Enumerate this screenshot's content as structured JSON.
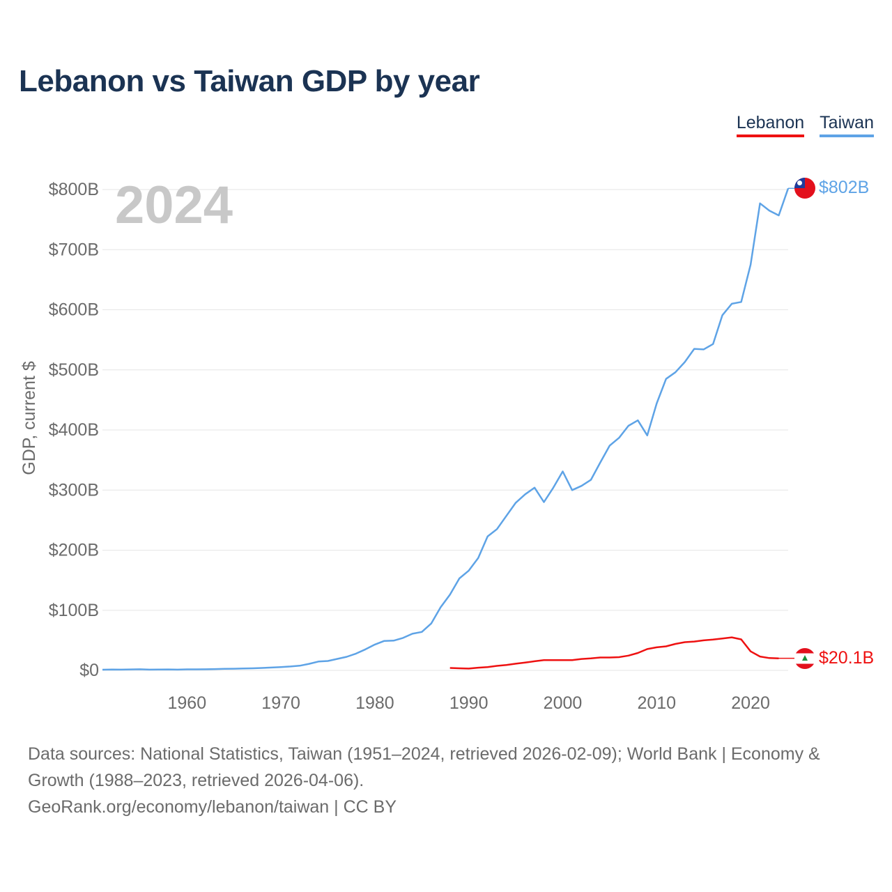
{
  "chart_data": {
    "type": "line",
    "title": "Lebanon vs Taiwan GDP by year",
    "year_label": "2024",
    "ylabel": "GDP, current $",
    "xlim": [
      1951,
      2024
    ],
    "ylim": [
      0,
      800
    ],
    "y_ticks": [
      0,
      100,
      200,
      300,
      400,
      500,
      600,
      700,
      800
    ],
    "y_tick_labels": [
      "$0",
      "$100B",
      "$200B",
      "$300B",
      "$400B",
      "$500B",
      "$600B",
      "$700B",
      "$800B"
    ],
    "x_ticks": [
      1960,
      1970,
      1980,
      1990,
      2000,
      2010,
      2020
    ],
    "x_tick_labels": [
      "1960",
      "1970",
      "1980",
      "1990",
      "2000",
      "2010",
      "2020"
    ],
    "legend": [
      "Lebanon",
      "Taiwan"
    ],
    "series": [
      {
        "name": "Taiwan",
        "color": "#5ea3e6",
        "end_label": "$802B",
        "x": [
          1951,
          1952,
          1953,
          1954,
          1955,
          1956,
          1957,
          1958,
          1959,
          1960,
          1961,
          1962,
          1963,
          1964,
          1965,
          1966,
          1967,
          1968,
          1969,
          1970,
          1971,
          1972,
          1973,
          1974,
          1975,
          1976,
          1977,
          1978,
          1979,
          1980,
          1981,
          1982,
          1983,
          1984,
          1985,
          1986,
          1987,
          1988,
          1989,
          1990,
          1991,
          1992,
          1993,
          1994,
          1995,
          1996,
          1997,
          1998,
          1999,
          2000,
          2001,
          2002,
          2003,
          2004,
          2005,
          2006,
          2007,
          2008,
          2009,
          2010,
          2011,
          2012,
          2013,
          2014,
          2015,
          2016,
          2017,
          2018,
          2019,
          2020,
          2021,
          2022,
          2023,
          2024
        ],
        "y": [
          1.2,
          1.4,
          1.3,
          1.6,
          1.8,
          1.3,
          1.5,
          1.6,
          1.3,
          1.7,
          1.7,
          1.9,
          2.2,
          2.6,
          2.8,
          3.1,
          3.5,
          4.1,
          4.8,
          5.6,
          6.5,
          7.8,
          10.9,
          14.7,
          15.7,
          19.1,
          22.6,
          28.0,
          35.0,
          43.0,
          49.0,
          49.5,
          54.0,
          61.0,
          64.0,
          78.0,
          105.0,
          126.0,
          153.0,
          166.0,
          187.0,
          223.0,
          235.0,
          257.0,
          279.0,
          293.0,
          304.0,
          280.0,
          304.0,
          331.0,
          300.0,
          307.0,
          317.0,
          346.0,
          374.0,
          387.0,
          407.0,
          416.0,
          391.0,
          444.0,
          485.0,
          496.0,
          513.0,
          535.0,
          534.0,
          543.0,
          591.0,
          610.0,
          613.0,
          675.0,
          777.0,
          765.0,
          757.0,
          802.0
        ]
      },
      {
        "name": "Lebanon",
        "color": "#ee1111",
        "end_label": "$20.1B",
        "x": [
          1988,
          1989,
          1990,
          1991,
          1992,
          1993,
          1994,
          1995,
          1996,
          1997,
          1998,
          1999,
          2000,
          2001,
          2002,
          2003,
          2004,
          2005,
          2006,
          2007,
          2008,
          2009,
          2010,
          2011,
          2012,
          2013,
          2014,
          2015,
          2016,
          2017,
          2018,
          2019,
          2020,
          2021,
          2022,
          2023
        ],
        "y": [
          4.0,
          3.5,
          3.0,
          4.5,
          5.5,
          7.5,
          9.1,
          11.1,
          13.0,
          15.2,
          17.0,
          17.0,
          17.0,
          17.1,
          19.0,
          20.0,
          21.5,
          21.5,
          22.0,
          24.6,
          29.0,
          35.5,
          38.4,
          40.0,
          44.0,
          46.9,
          48.0,
          50.0,
          51.2,
          53.1,
          54.9,
          51.6,
          31.7,
          23.1,
          20.5,
          20.1
        ]
      }
    ]
  },
  "source": {
    "line1": "Data sources: National Statistics, Taiwan (1951–2024, retrieved 2026-02-09); World Bank | Economy &",
    "line2": "Growth (1988–2023, retrieved 2026-04-06).",
    "line3": "GeoRank.org/economy/lebanon/taiwan | CC BY"
  }
}
